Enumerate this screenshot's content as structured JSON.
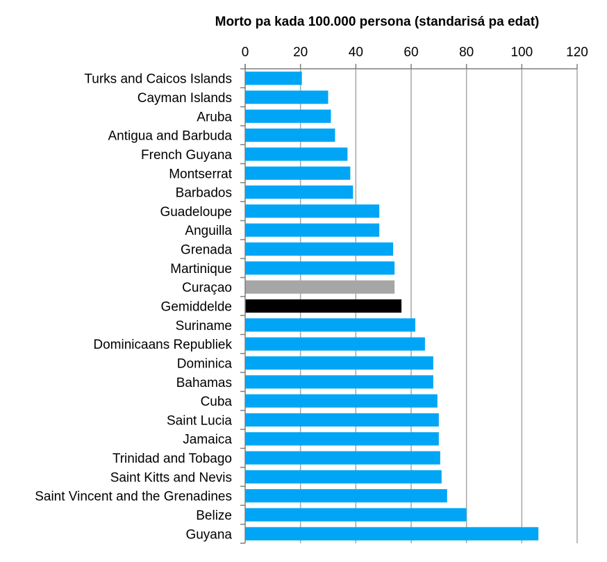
{
  "chart_data": {
    "type": "bar",
    "orientation": "horizontal",
    "title": "Morto pa kada 100.000 persona (standarisá pa edat)",
    "xlabel": "",
    "ylabel": "",
    "xlim": [
      0,
      120
    ],
    "xticks": [
      0,
      20,
      40,
      60,
      80,
      100,
      120
    ],
    "x_axis_position": "top",
    "grid": true,
    "legend": "none",
    "colors": {
      "default": "#00a6f5",
      "Curaçao": "#a6a6a6",
      "Gemiddelde": "#000000"
    },
    "categories": [
      "Turks and Caicos Islands",
      "Cayman Islands",
      "Aruba",
      "Antigua and Barbuda",
      "French Guyana",
      "Montserrat",
      "Barbados",
      "Guadeloupe",
      "Anguilla",
      "Grenada",
      "Martinique",
      "Curaçao",
      "Gemiddelde",
      "Suriname",
      "Dominicaans Republiek",
      "Dominica",
      "Bahamas",
      "Cuba",
      "Saint Lucia",
      "Jamaica",
      "Trinidad and Tobago",
      "Saint Kitts and Nevis",
      "Saint Vincent and the Grenadines",
      "Belize",
      "Guyana"
    ],
    "values": [
      20.5,
      30,
      31,
      32.5,
      37,
      38,
      39,
      48.5,
      48.5,
      53.5,
      54,
      54,
      56.5,
      61.5,
      65,
      68,
      68,
      69.5,
      70,
      70,
      70.5,
      71,
      73,
      80,
      106
    ]
  }
}
